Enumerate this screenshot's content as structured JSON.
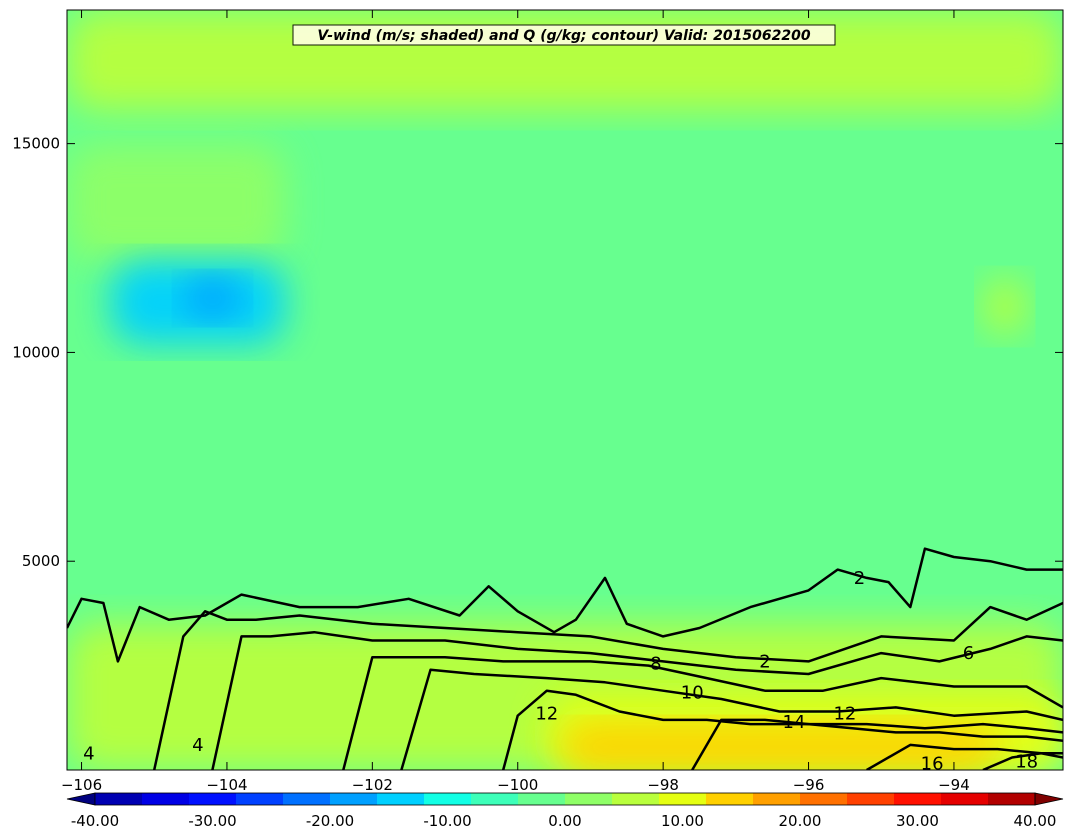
{
  "chart_data": {
    "type": "heatmap",
    "title": "V-wind (m/s; shaded) and Q (g/kg; contour) Valid: 2015062200",
    "xlim": [
      -106.2,
      -92.5
    ],
    "ylim": [
      0,
      18200
    ],
    "x_ticks": [
      -106,
      -104,
      -102,
      -100,
      -98,
      -96,
      -94
    ],
    "x_tick_labels": [
      "−106",
      "−104",
      "−102",
      "−100",
      "−98",
      "−96",
      "−94"
    ],
    "y_ticks": [
      5000,
      10000,
      15000
    ],
    "y_tick_labels": [
      "5000",
      "10000",
      "15000"
    ],
    "colorbar": {
      "min": -40,
      "max": 40,
      "step": 4,
      "ticks": [
        -40,
        -30,
        -20,
        -10,
        0,
        10,
        20,
        30,
        40
      ],
      "tick_labels": [
        "-40.00",
        "-30.00",
        "-20.00",
        "-10.00",
        "0.00",
        "10.00",
        "20.00",
        "30.00",
        "40.00"
      ],
      "colors": [
        "#00007f",
        "#0000b2",
        "#0000e5",
        "#0010ff",
        "#0040ff",
        "#0070ff",
        "#00a0ff",
        "#00d0ff",
        "#12ffe5",
        "#3dffb9",
        "#67ff8f",
        "#8fff67",
        "#b9ff3d",
        "#e5ff12",
        "#ffd000",
        "#ffa000",
        "#ff7000",
        "#ff4000",
        "#ff1000",
        "#e50000",
        "#b20000",
        "#7f0000"
      ]
    },
    "shading_regions": [
      {
        "name": "background",
        "value": -2
      },
      {
        "x": [
          -106.2,
          -92.5
        ],
        "y": [
          15800,
          18200
        ],
        "value": 4
      },
      {
        "x": [
          -106.2,
          -103.2
        ],
        "y": [
          12200,
          15000
        ],
        "value": 2
      },
      {
        "x": [
          -105.6,
          -103.2
        ],
        "y": [
          10200,
          12200
        ],
        "value": -14
      },
      {
        "x": [
          -104.6,
          -103.8
        ],
        "y": [
          10800,
          11800
        ],
        "value": -18
      },
      {
        "x": [
          -106.2,
          -92.5
        ],
        "y": [
          0,
          3500
        ],
        "value": 5
      },
      {
        "x": [
          -99.6,
          -92.5
        ],
        "y": [
          0,
          1800
        ],
        "value": 8
      },
      {
        "x": [
          -99.4,
          -93.4
        ],
        "y": [
          0,
          1100
        ],
        "value": 12
      },
      {
        "x": [
          -93.6,
          -93.0
        ],
        "y": [
          10400,
          11800
        ],
        "value": 6
      }
    ],
    "contours": [
      {
        "level": 2,
        "label": "2",
        "x": [
          -106.2,
          -106.0,
          -105.7,
          -105.5,
          -105.2,
          -104.8,
          -104.3,
          -103.8,
          -103.0,
          -102.2,
          -101.5,
          -100.8,
          -100.4,
          -100.0,
          -99.5,
          -99.2,
          -98.8,
          -98.5,
          -98.0,
          -97.5,
          -96.8,
          -96.0,
          -95.6,
          -95.2,
          -94.9,
          -94.6,
          -94.4,
          -94.0,
          -93.5,
          -93.0,
          -92.5
        ],
        "y": [
          3400,
          4100,
          4000,
          2600,
          3900,
          3600,
          3700,
          4200,
          3900,
          3900,
          4100,
          3700,
          4400,
          3800,
          3300,
          3600,
          4600,
          3500,
          3200,
          3400,
          3900,
          4300,
          4800,
          4600,
          4500,
          3900,
          5300,
          5100,
          5000,
          4800,
          4800
        ]
      },
      {
        "level": 4,
        "label": "4",
        "x": [
          -105.0,
          -104.6,
          -104.3,
          -104.0,
          -103.6,
          -103.0,
          -102.0,
          -101.0,
          -100.0,
          -99.0,
          -98.0,
          -97.0,
          -96.0,
          -95.0,
          -94.0,
          -93.5,
          -93.0,
          -92.5
        ],
        "y": [
          0,
          3200,
          3800,
          3600,
          3600,
          3700,
          3500,
          3400,
          3300,
          3200,
          2900,
          2700,
          2600,
          3200,
          3100,
          3900,
          3600,
          4000
        ]
      },
      {
        "level": 6,
        "label": "6",
        "x": [
          -104.2,
          -103.8,
          -103.4,
          -102.8,
          -102.0,
          -101.0,
          -100.0,
          -99.0,
          -98.0,
          -97.0,
          -96.0,
          -95.0,
          -94.2,
          -93.5,
          -93.0,
          -92.5
        ],
        "y": [
          0,
          3200,
          3200,
          3300,
          3100,
          3100,
          2900,
          2800,
          2600,
          2400,
          2300,
          2800,
          2600,
          2900,
          3200,
          3100
        ]
      },
      {
        "level": 8,
        "label": "8",
        "x": [
          -102.4,
          -102.0,
          -101.0,
          -100.2,
          -99.0,
          -98.2,
          -97.4,
          -96.6,
          -95.8,
          -95.0,
          -94.0,
          -93.0,
          -92.5
        ],
        "y": [
          0,
          2700,
          2700,
          2600,
          2600,
          2500,
          2200,
          1900,
          1900,
          2200,
          2000,
          2000,
          1500
        ]
      },
      {
        "level": 10,
        "label": "10",
        "x": [
          -101.6,
          -101.2,
          -100.6,
          -99.6,
          -98.8,
          -98.0,
          -97.2,
          -96.4,
          -95.6,
          -94.8,
          -94.0,
          -93.0,
          -92.5
        ],
        "y": [
          0,
          2400,
          2300,
          2200,
          2100,
          1900,
          1700,
          1400,
          1400,
          1500,
          1300,
          1400,
          1200
        ]
      },
      {
        "level": 12,
        "label": "12",
        "x": [
          -100.2,
          -100.0,
          -99.6,
          -99.2,
          -98.6,
          -98.0,
          -97.4,
          -96.8,
          -96.0,
          -95.2,
          -94.4,
          -93.6,
          -93.0,
          -92.5
        ],
        "y": [
          0,
          1300,
          1900,
          1800,
          1400,
          1200,
          1200,
          1100,
          1100,
          1100,
          1000,
          1100,
          1000,
          900
        ]
      },
      {
        "level": 14,
        "label": "14",
        "x": [
          -97.6,
          -97.2,
          -96.6,
          -96.0,
          -95.4,
          -94.8,
          -94.2,
          -93.6,
          -93.0,
          -92.5
        ],
        "y": [
          0,
          1200,
          1200,
          1100,
          1000,
          900,
          900,
          800,
          800,
          700
        ]
      },
      {
        "level": 16,
        "label": "16",
        "x": [
          -95.2,
          -94.6,
          -94.0,
          -93.4,
          -92.8,
          -92.5
        ],
        "y": [
          0,
          600,
          500,
          500,
          400,
          400
        ]
      },
      {
        "level": 18,
        "label": "18",
        "x": [
          -93.6,
          -93.2,
          -92.8,
          -92.5
        ],
        "y": [
          0,
          300,
          400,
          300
        ]
      }
    ],
    "contour_labels": [
      {
        "text": "2",
        "x": -95.3,
        "y": 4600
      },
      {
        "text": "2",
        "x": -96.6,
        "y": 2600
      },
      {
        "text": "4",
        "x": -105.9,
        "y": 400
      },
      {
        "text": "4",
        "x": -104.4,
        "y": 600
      },
      {
        "text": "6",
        "x": -93.8,
        "y": 2800
      },
      {
        "text": "8",
        "x": -98.1,
        "y": 2550
      },
      {
        "text": "10",
        "x": -97.6,
        "y": 1850
      },
      {
        "text": "12",
        "x": -99.6,
        "y": 1350
      },
      {
        "text": "12",
        "x": -95.5,
        "y": 1350
      },
      {
        "text": "14",
        "x": -96.2,
        "y": 1150
      },
      {
        "text": "16",
        "x": -94.3,
        "y": 150
      },
      {
        "text": "18",
        "x": -93.0,
        "y": 200
      }
    ]
  }
}
